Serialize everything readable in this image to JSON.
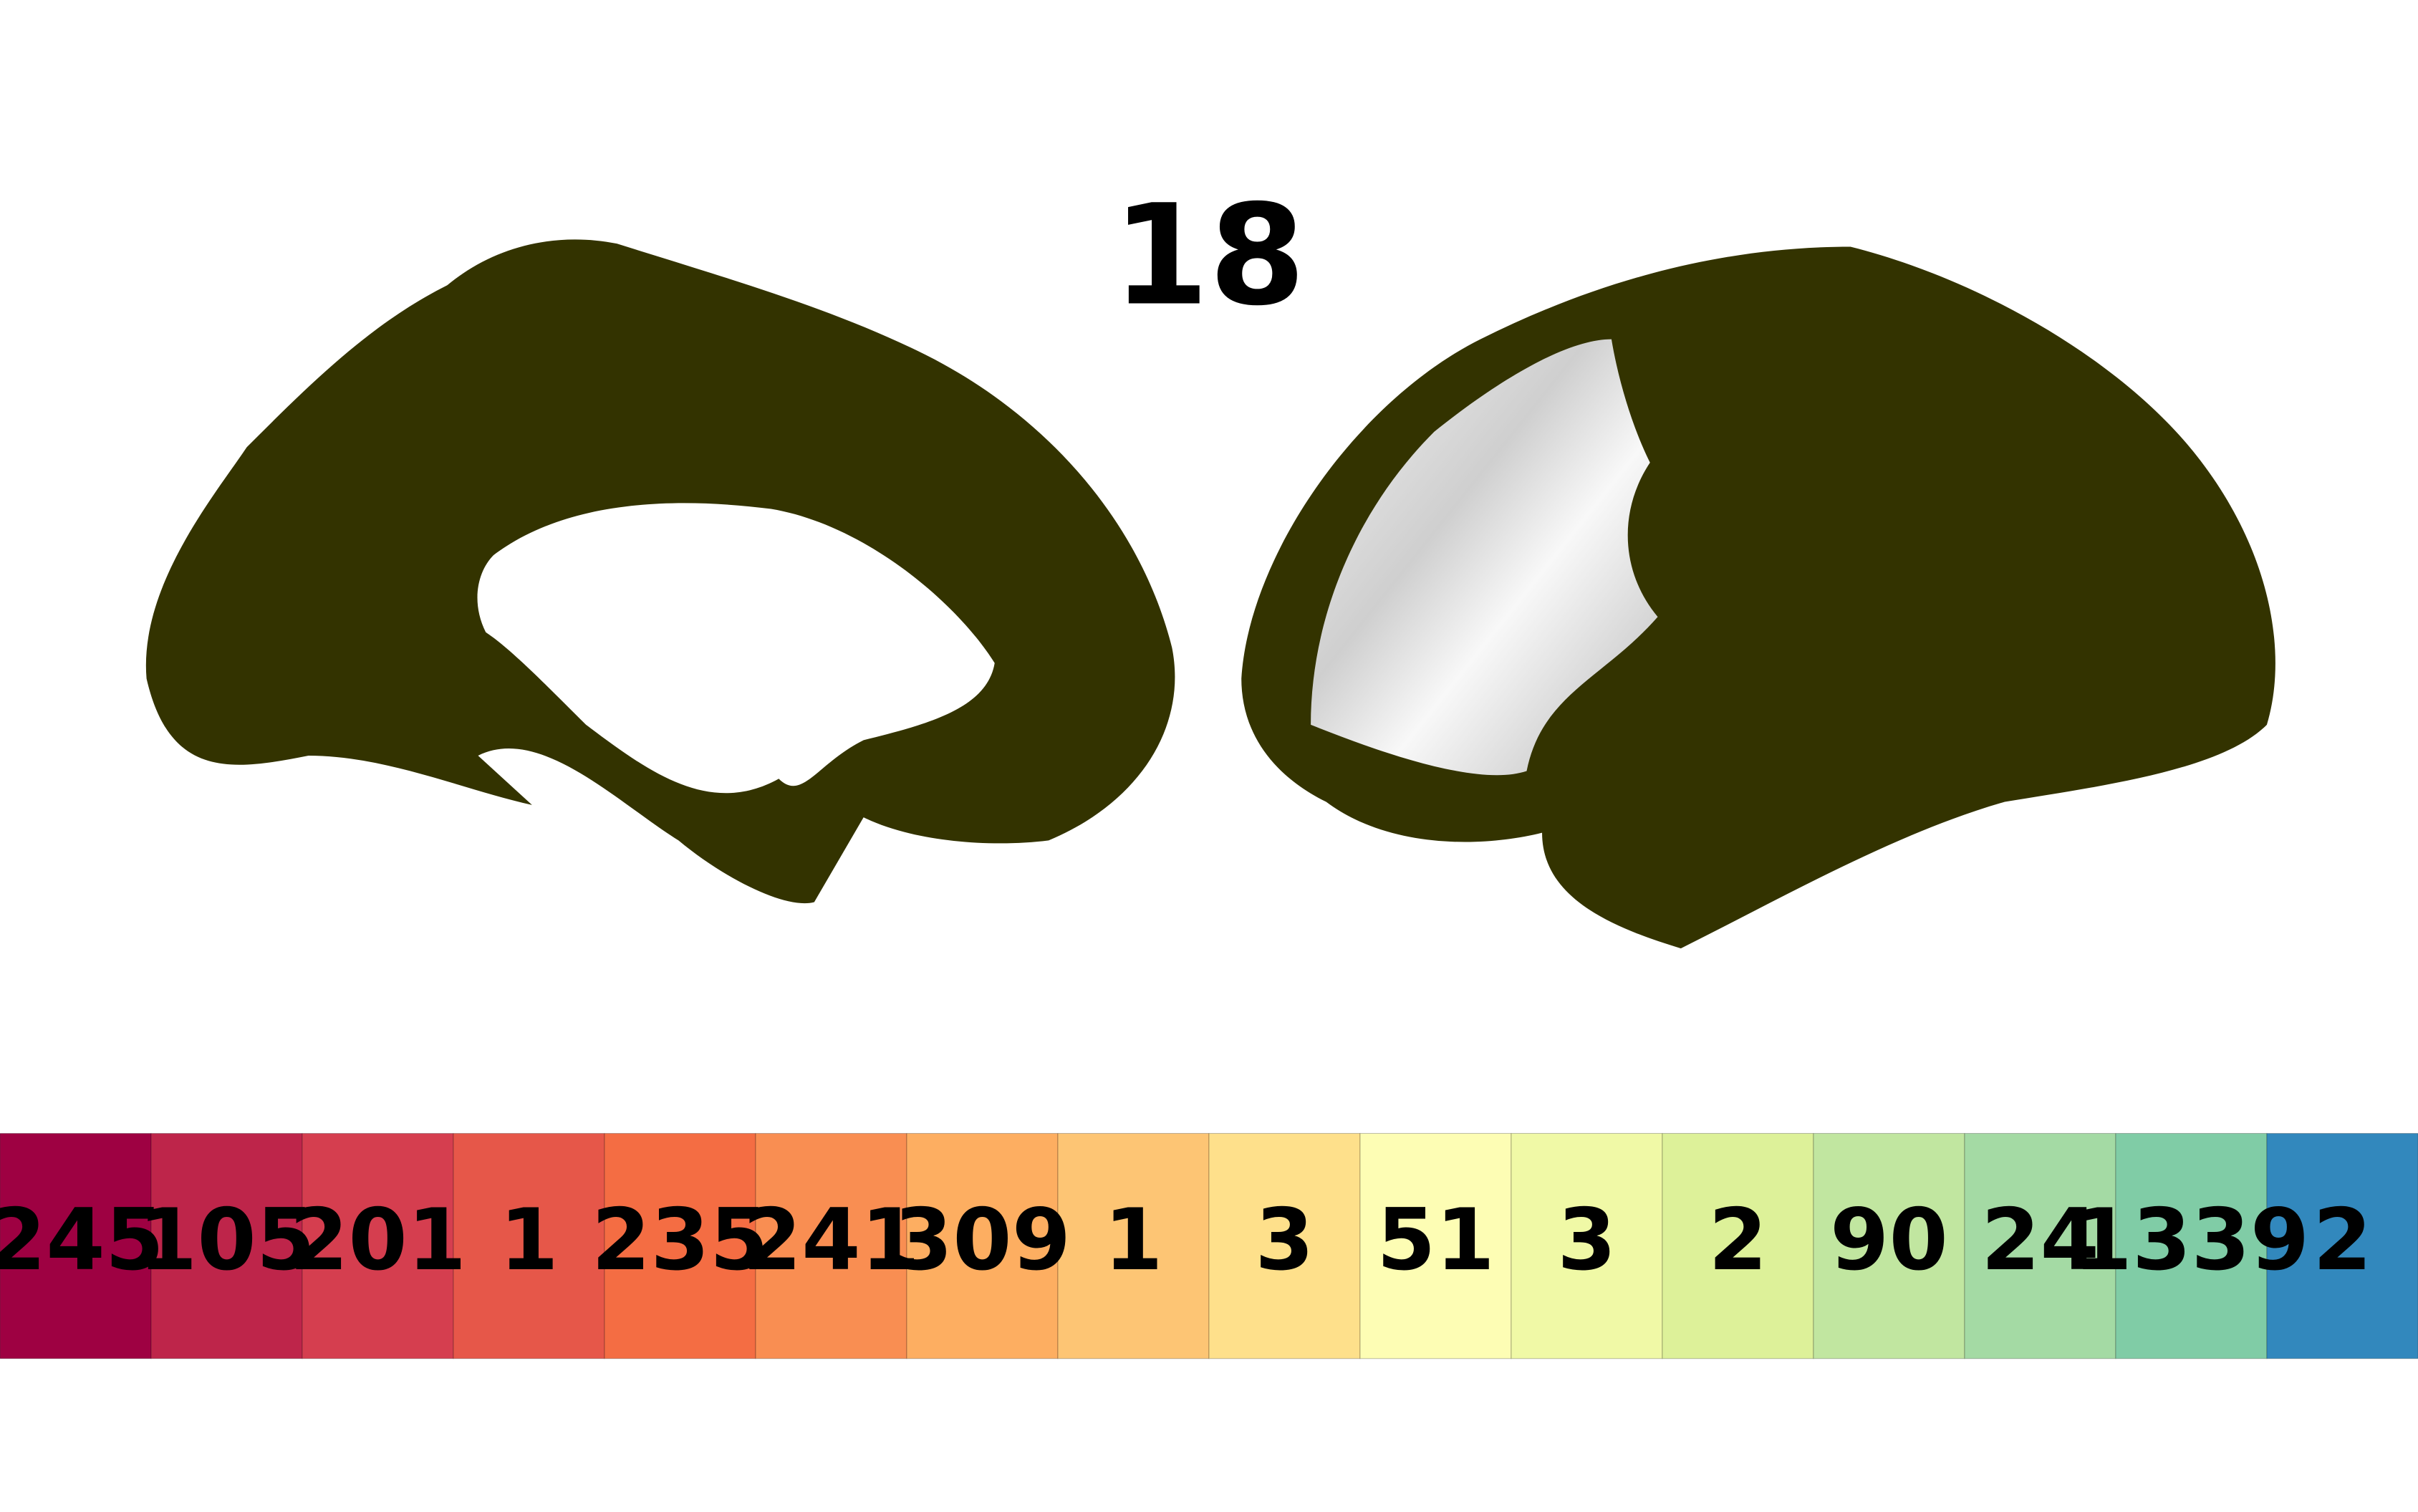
{
  "title": "18",
  "colorbar": {
    "cells": [
      {
        "label": "245",
        "color": "#9e0142"
      },
      {
        "label": "105",
        "color": "#be254a"
      },
      {
        "label": "201",
        "color": "#d53e4f"
      },
      {
        "label": "1",
        "color": "#e65749"
      },
      {
        "label": "235",
        "color": "#f46d43"
      },
      {
        "label": "241",
        "color": "#f98e52"
      },
      {
        "label": "309",
        "color": "#fdae61"
      },
      {
        "label": "1",
        "color": "#fdc574"
      },
      {
        "label": "3",
        "color": "#fee08b"
      },
      {
        "label": "51",
        "color": "#fdfdb4"
      },
      {
        "label": "3",
        "color": "#f0f9a6"
      },
      {
        "label": "2",
        "color": "#ddf199"
      },
      {
        "label": "90",
        "color": "#c1e6a0"
      },
      {
        "label": "24",
        "color": "#a4daa4"
      },
      {
        "label": "1339",
        "color": "#80cca6"
      },
      {
        "label": "2",
        "color": "#3288bd"
      }
    ]
  }
}
